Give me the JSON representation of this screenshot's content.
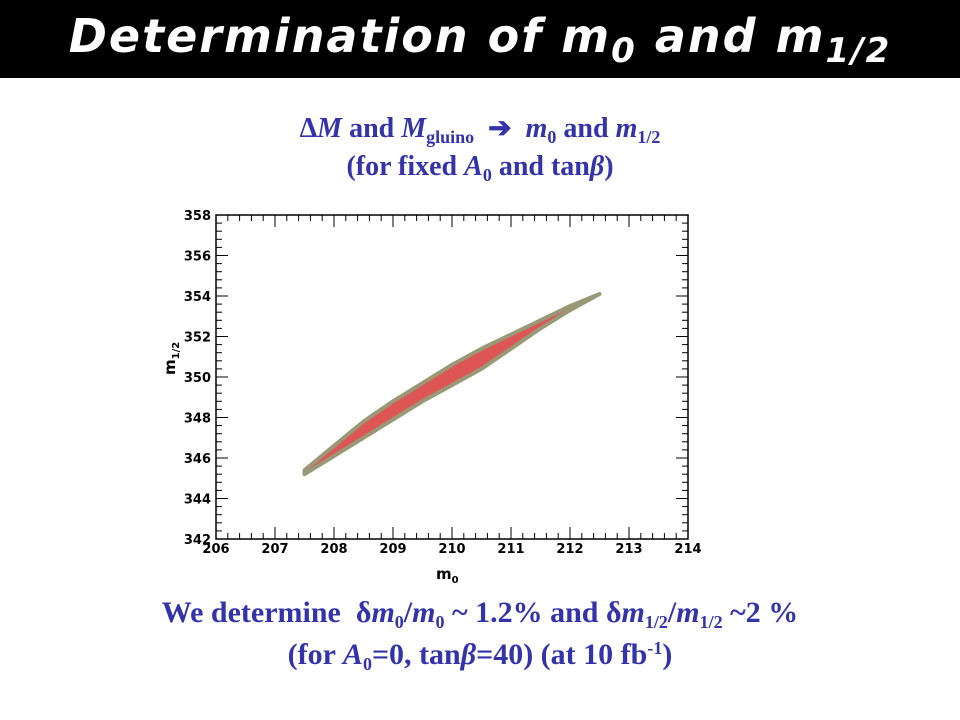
{
  "header": {
    "title": "Determination of m",
    "title_sub_0": "0",
    "title_mid": " and m",
    "title_sub_half": "1/2"
  },
  "subtitle": {
    "delta": "Δ",
    "M": "M",
    "and1": " and ",
    "M2": "M",
    "gluino": "gluino",
    "arrow": "  ➔  ",
    "m0": "m",
    "m0_sub": "0",
    "and2": " and ",
    "m12": "m",
    "m12_sub": "1/2",
    "line2_open": "(for fixed ",
    "A0": "A",
    "A0_sub": "0",
    "line2_mid": " and tan",
    "beta": "β",
    "line2_close": ")"
  },
  "summary": {
    "p1": "We determine  ",
    "delta1": "δ",
    "m_a": "m",
    "sub_a": "0",
    "slash1": "/",
    "m_b": "m",
    "sub_b": "0",
    "p2": " ~ 1.2% and ",
    "delta2": "δ",
    "m_c": "m",
    "sub_c": "1/2",
    "slash2": "/",
    "m_d": "m",
    "sub_d": "1/2",
    "p3": " ~2 %",
    "l2a": "(for ",
    "A": "A",
    "A_sub": "0",
    "l2b": "=0, tan",
    "beta": "β",
    "l2c": "=40) (at 10 fb",
    "sup": "-1",
    "l2d": ")"
  },
  "chart_data": {
    "type": "area",
    "xlabel": "m",
    "xlabel_sub": "0",
    "ylabel": "m",
    "ylabel_sub": "1/2",
    "xlim": [
      206,
      214
    ],
    "ylim": [
      342,
      358
    ],
    "x_ticks": [
      206,
      207,
      208,
      209,
      210,
      211,
      212,
      213,
      214
    ],
    "y_ticks": [
      342,
      344,
      346,
      348,
      350,
      352,
      354,
      356,
      358
    ],
    "grid": false,
    "fill_color": "#dd5555",
    "edge_color": "#999977",
    "region_upper": [
      [
        207.5,
        345.4
      ],
      [
        208.0,
        346.6
      ],
      [
        208.5,
        347.8
      ],
      [
        209.0,
        348.8
      ],
      [
        209.5,
        349.7
      ],
      [
        210.0,
        350.6
      ],
      [
        210.5,
        351.4
      ],
      [
        211.0,
        352.1
      ],
      [
        211.5,
        352.8
      ],
      [
        212.0,
        353.5
      ],
      [
        212.5,
        354.1
      ]
    ],
    "region_lower": [
      [
        212.5,
        354.1
      ],
      [
        212.0,
        353.3
      ],
      [
        211.5,
        352.4
      ],
      [
        211.0,
        351.4
      ],
      [
        210.5,
        350.4
      ],
      [
        210.0,
        349.6
      ],
      [
        209.5,
        348.8
      ],
      [
        209.0,
        347.9
      ],
      [
        208.5,
        347.0
      ],
      [
        208.0,
        346.1
      ],
      [
        207.5,
        345.2
      ]
    ]
  }
}
